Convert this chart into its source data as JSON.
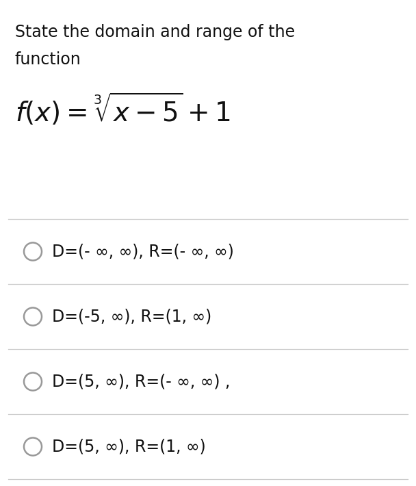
{
  "background_color": "#ffffff",
  "title_line1": "State the domain and range of the",
  "title_line2": "function",
  "options": [
    "D=(- ∞, ∞), R=(- ∞, ∞)",
    "D=(-5, ∞), R=(1, ∞)",
    "D=(5, ∞), R=(- ∞, ∞) ,",
    "D=(5, ∞), R=(1, ∞)"
  ],
  "title_fontsize": 17,
  "option_fontsize": 17,
  "formula_fontsize": 28,
  "text_color": "#111111",
  "line_color": "#cccccc",
  "circle_edge_color": "#999999",
  "circle_lw": 1.8,
  "fig_width": 6.08,
  "fig_height": 7.1,
  "dpi": 100
}
